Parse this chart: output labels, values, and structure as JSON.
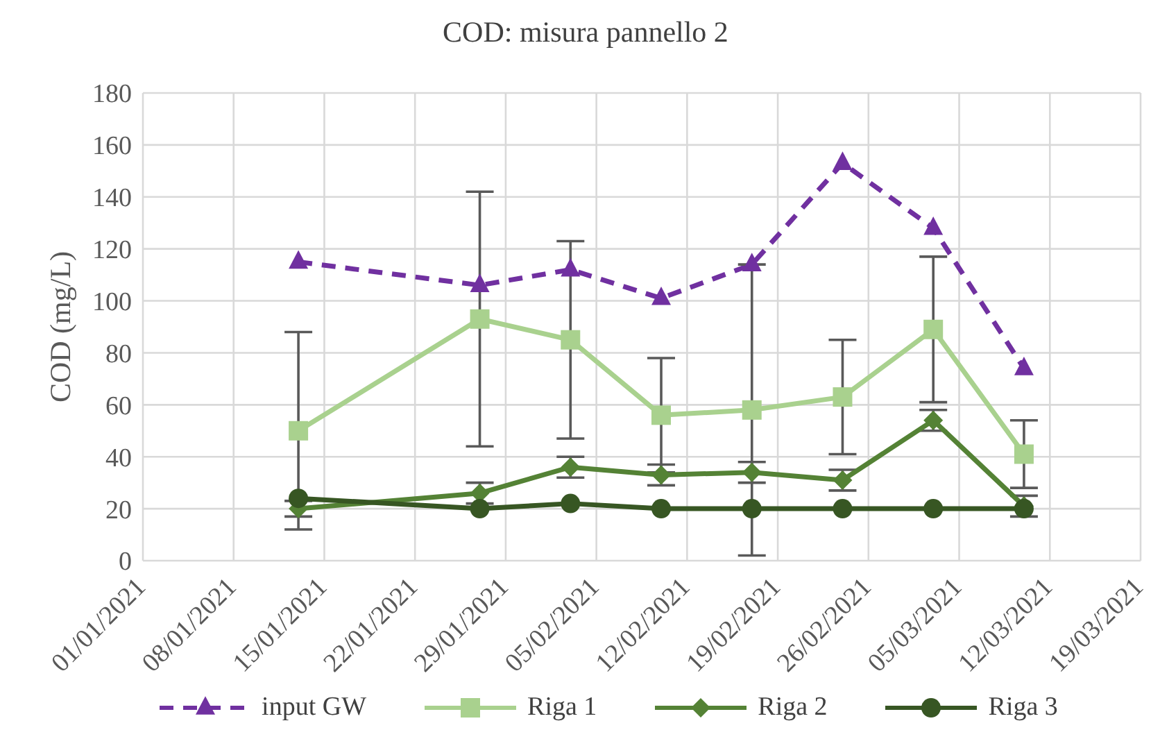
{
  "chart_data": {
    "type": "line",
    "title": "COD: misura pannello 2",
    "ylabel": "COD (mg/L)",
    "x": [
      "2021-01-13",
      "2021-01-27",
      "2021-02-03",
      "2021-02-10",
      "2021-02-17",
      "2021-02-24",
      "2021-03-03",
      "2021-03-10"
    ],
    "series": [
      {
        "name": "input GW",
        "color": "#7030a0",
        "marker": "triangle",
        "line_style": "dashed",
        "values": [
          115,
          106,
          112,
          101,
          114,
          153,
          128,
          74
        ]
      },
      {
        "name": "Riga 1",
        "color": "#a9d18e",
        "marker": "square",
        "line_style": "solid",
        "values": [
          50,
          93,
          85,
          56,
          58,
          63,
          89,
          41
        ],
        "errors": [
          38,
          49,
          38,
          22,
          56,
          22,
          28,
          13
        ]
      },
      {
        "name": "Riga 2",
        "color": "#548235",
        "marker": "diamond",
        "line_style": "solid",
        "values": [
          20,
          26,
          36,
          33,
          34,
          31,
          54,
          21
        ],
        "errors": [
          3,
          4,
          4,
          4,
          4,
          4,
          4,
          4
        ]
      },
      {
        "name": "Riga 3",
        "color": "#375623",
        "marker": "circle",
        "line_style": "solid",
        "values": [
          24,
          20,
          22,
          20,
          20,
          20,
          20,
          20
        ]
      }
    ],
    "xlim": [
      "2021-01-01",
      "2021-03-19"
    ],
    "xticks": [
      {
        "value": "2021-01-01",
        "label": "01/01/2021"
      },
      {
        "value": "2021-01-08",
        "label": "08/01/2021"
      },
      {
        "value": "2021-01-15",
        "label": "15/01/2021"
      },
      {
        "value": "2021-01-22",
        "label": "22/01/2021"
      },
      {
        "value": "2021-01-29",
        "label": "29/01/2021"
      },
      {
        "value": "2021-02-05",
        "label": "05/02/2021"
      },
      {
        "value": "2021-02-12",
        "label": "12/02/2021"
      },
      {
        "value": "2021-02-19",
        "label": "19/02/2021"
      },
      {
        "value": "2021-02-26",
        "label": "26/02/2021"
      },
      {
        "value": "2021-03-05",
        "label": "05/03/2021"
      },
      {
        "value": "2021-03-12",
        "label": "12/03/2021"
      },
      {
        "value": "2021-03-19",
        "label": "19/03/2021"
      }
    ],
    "ylim": [
      0,
      180
    ],
    "yticks": [
      0,
      20,
      40,
      60,
      80,
      100,
      120,
      140,
      160,
      180
    ],
    "grid": true,
    "legend": "bottom"
  }
}
